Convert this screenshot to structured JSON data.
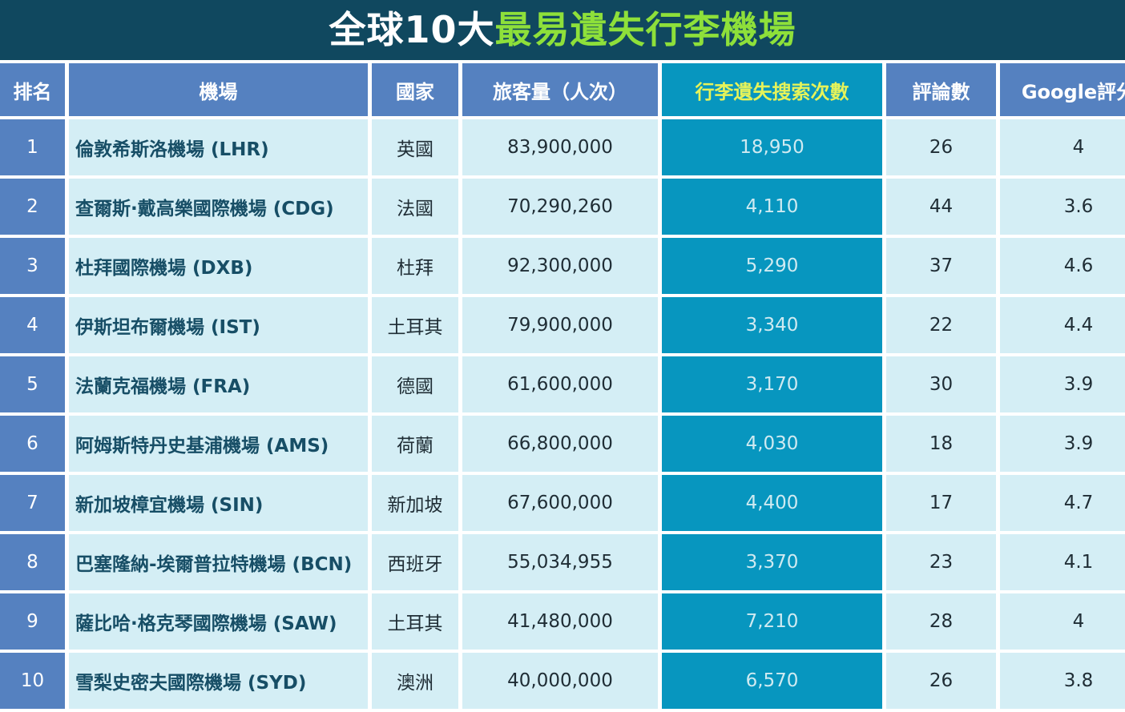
{
  "title": {
    "prefix": "全球10大",
    "highlight": "最易遺失行李機場"
  },
  "headers": [
    "排名",
    "機場",
    "國家",
    "旅客量（人次）",
    "行李遺失搜索次數",
    "評論數",
    "Google評分"
  ],
  "colors": {
    "title_bg": "#10485f",
    "header_bg": "#5581c0",
    "highlight_col": "#0796bf",
    "highlight_text": "#e5f35a",
    "title_highlight": "#8ee03a",
    "row_bg": "#d4eef5"
  },
  "rows": [
    {
      "rank": "1",
      "airport": "倫敦希斯洛機場 (LHR)",
      "country": "英國",
      "passengers": "83,900,000",
      "lost_searches": "18,950",
      "reviews": "26",
      "rating": "4"
    },
    {
      "rank": "2",
      "airport": "查爾斯·戴高樂國際機場 (CDG)",
      "country": "法國",
      "passengers": "70,290,260",
      "lost_searches": "4,110",
      "reviews": "44",
      "rating": "3.6"
    },
    {
      "rank": "3",
      "airport": "杜拜國際機場 (DXB)",
      "country": "杜拜",
      "passengers": "92,300,000",
      "lost_searches": "5,290",
      "reviews": "37",
      "rating": "4.6"
    },
    {
      "rank": "4",
      "airport": "伊斯坦布爾機場 (IST)",
      "country": "土耳其",
      "passengers": "79,900,000",
      "lost_searches": "3,340",
      "reviews": "22",
      "rating": "4.4"
    },
    {
      "rank": "5",
      "airport": "法蘭克福機場 (FRA)",
      "country": "德國",
      "passengers": "61,600,000",
      "lost_searches": "3,170",
      "reviews": "30",
      "rating": "3.9"
    },
    {
      "rank": "6",
      "airport": "阿姆斯特丹史基浦機場 (AMS)",
      "country": "荷蘭",
      "passengers": "66,800,000",
      "lost_searches": "4,030",
      "reviews": "18",
      "rating": "3.9"
    },
    {
      "rank": "7",
      "airport": "新加坡樟宜機場 (SIN)",
      "country": "新加坡",
      "passengers": "67,600,000",
      "lost_searches": "4,400",
      "reviews": "17",
      "rating": "4.7"
    },
    {
      "rank": "8",
      "airport": "巴塞隆納-埃爾普拉特機場 (BCN)",
      "country": "西班牙",
      "passengers": "55,034,955",
      "lost_searches": "3,370",
      "reviews": "23",
      "rating": "4.1"
    },
    {
      "rank": "9",
      "airport": "薩比哈·格克琴國際機場 (SAW)",
      "country": "土耳其",
      "passengers": "41,480,000",
      "lost_searches": "7,210",
      "reviews": "28",
      "rating": "4"
    },
    {
      "rank": "10",
      "airport": "雪梨史密夫國際機場 (SYD)",
      "country": "澳洲",
      "passengers": "40,000,000",
      "lost_searches": "6,570",
      "reviews": "26",
      "rating": "3.8"
    }
  ]
}
